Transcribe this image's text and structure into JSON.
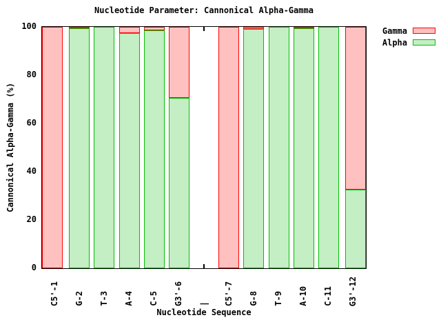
{
  "chart_data": {
    "type": "bar",
    "stacked": true,
    "title": "Nucleotide Parameter: Cannonical Alpha-Gamma",
    "xlabel": "Nucleotide Sequence",
    "ylabel": "Cannonical Alpha-Gamma (%)",
    "ylim": [
      0,
      100
    ],
    "yticks": [
      0,
      20,
      40,
      60,
      80,
      100
    ],
    "grid": false,
    "legend_position": "top-right-outside",
    "categories": [
      "C5'-1",
      "G-2",
      "T-3",
      "A-4",
      "C-5",
      "G3'-6",
      "|",
      "C5'-7",
      "G-8",
      "T-9",
      "A-10",
      "C-11",
      "G3'-12"
    ],
    "series": [
      {
        "name": "Gamma",
        "fill": "#ffc0c0",
        "border": "#ff0000",
        "values": [
          100,
          0.5,
          0,
          2.5,
          1.5,
          29.5,
          null,
          100,
          1,
          0,
          0.3,
          0,
          67.5
        ]
      },
      {
        "name": "Alpha",
        "fill": "#c4eec4",
        "border": "#00c000",
        "values": [
          0,
          99.5,
          100,
          97.5,
          98.5,
          70.5,
          null,
          0,
          99,
          100,
          99.7,
          100,
          32.5
        ]
      }
    ]
  }
}
